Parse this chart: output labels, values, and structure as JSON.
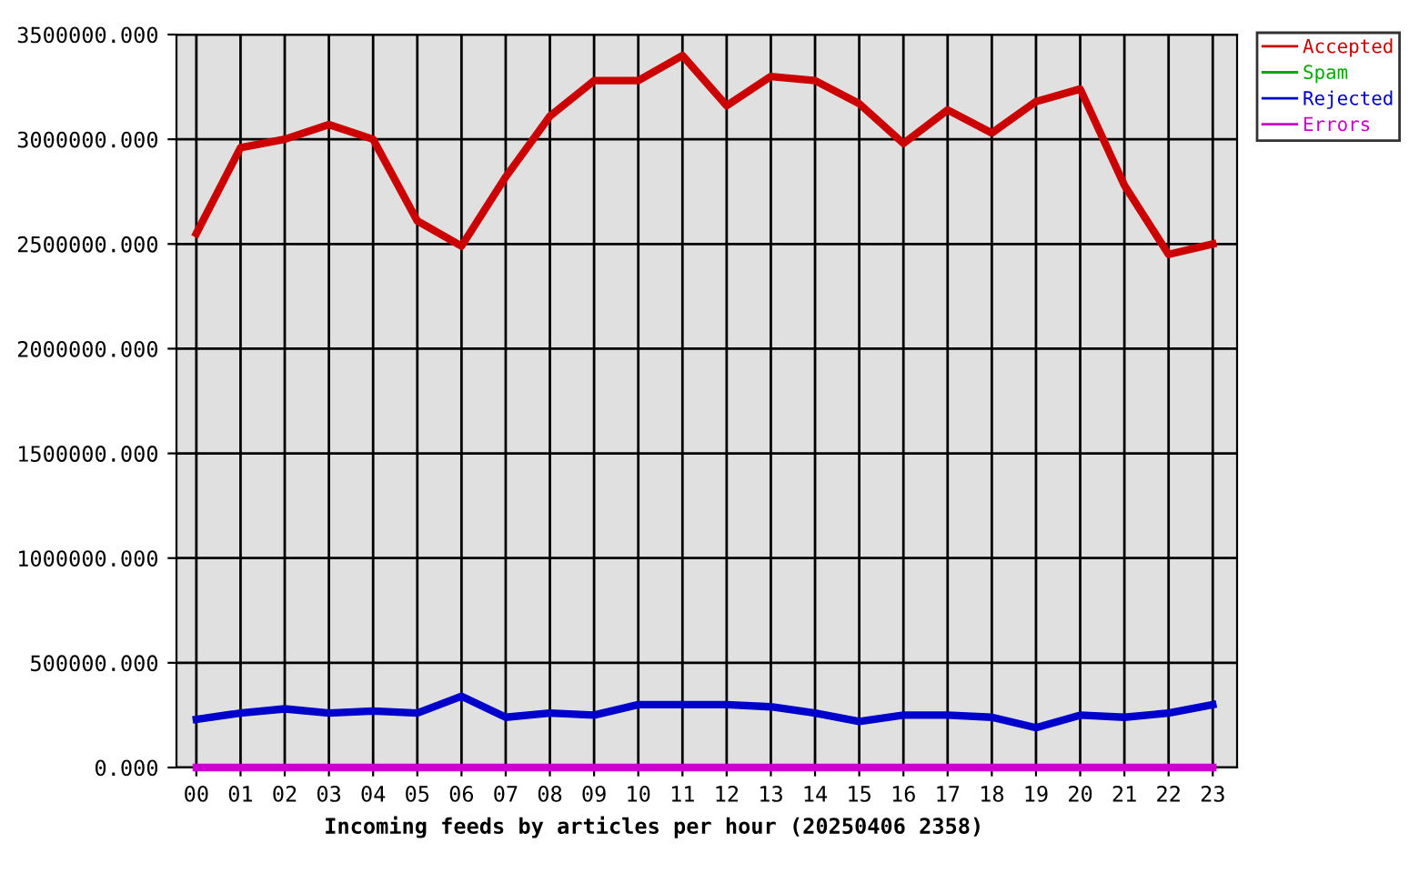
{
  "chart_data": {
    "type": "line",
    "xlabel": "Incoming feeds by articles per hour (20250406 2358)",
    "categories": [
      "00",
      "01",
      "02",
      "03",
      "04",
      "05",
      "06",
      "07",
      "08",
      "09",
      "10",
      "11",
      "12",
      "13",
      "14",
      "15",
      "16",
      "17",
      "18",
      "19",
      "20",
      "21",
      "22",
      "23"
    ],
    "series": [
      {
        "name": "Accepted",
        "color": "#cc0000",
        "values": [
          2550000,
          2960000,
          3000000,
          3070000,
          3000000,
          2610000,
          2490000,
          2820000,
          3110000,
          3280000,
          3280000,
          3400000,
          3160000,
          3300000,
          3280000,
          3170000,
          2980000,
          3140000,
          3030000,
          3180000,
          3240000,
          2780000,
          2450000,
          2500000
        ]
      },
      {
        "name": "Spam",
        "color": "#00aa00",
        "values": [
          null,
          null,
          null,
          null,
          null,
          null,
          null,
          null,
          null,
          null,
          null,
          null,
          null,
          null,
          null,
          null,
          null,
          null,
          null,
          null,
          null,
          null,
          null,
          null
        ]
      },
      {
        "name": "Rejected",
        "color": "#0000cc",
        "values": [
          230000,
          260000,
          280000,
          260000,
          270000,
          260000,
          340000,
          240000,
          260000,
          250000,
          300000,
          300000,
          300000,
          290000,
          260000,
          220000,
          250000,
          250000,
          240000,
          190000,
          250000,
          240000,
          260000,
          300000
        ]
      },
      {
        "name": "Errors",
        "color": "#cc00cc",
        "values": [
          0,
          0,
          0,
          0,
          0,
          0,
          0,
          0,
          0,
          0,
          0,
          0,
          0,
          0,
          0,
          0,
          0,
          0,
          0,
          0,
          0,
          0,
          0,
          0
        ]
      }
    ],
    "ylim": [
      0,
      3500000
    ],
    "yticks": [
      {
        "value": 0,
        "label": "0.000"
      },
      {
        "value": 500000,
        "label": "500000.000"
      },
      {
        "value": 1000000,
        "label": "1000000.000"
      },
      {
        "value": 1500000,
        "label": "1500000.000"
      },
      {
        "value": 2000000,
        "label": "2000000.000"
      },
      {
        "value": 2500000,
        "label": "2500000.000"
      },
      {
        "value": 3000000,
        "label": "3000000.000"
      },
      {
        "value": 3500000,
        "label": "3500000.000"
      }
    ],
    "grid": true,
    "legend": "top right"
  }
}
